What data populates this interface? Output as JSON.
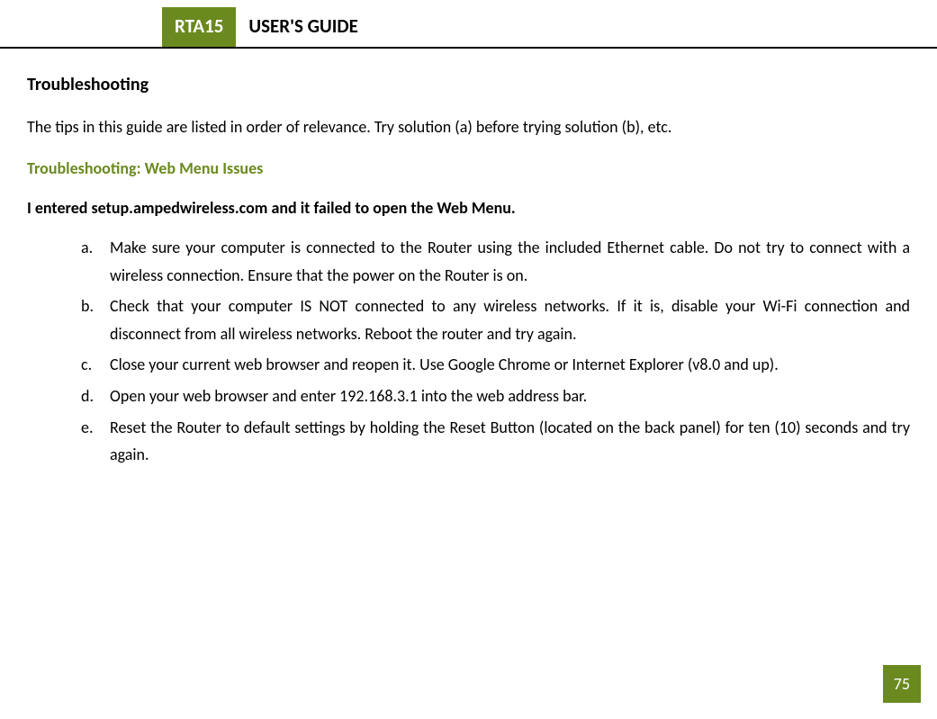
{
  "header": {
    "badge": "RTA15",
    "title": "USER'S GUIDE"
  },
  "colors": {
    "accent": "#6a8a1f",
    "text": "#000000",
    "badge_text": "#ffffff",
    "background": "#ffffff"
  },
  "section": {
    "title": "Troubleshooting",
    "intro": "The tips in this guide are listed in order of relevance.  Try solution (a) before trying solution (b), etc.",
    "subtitle": "Troubleshooting: Web Menu Issues",
    "issue": "I entered setup.ampedwireless.com and it failed to open the Web Menu.",
    "steps": [
      {
        "marker": "a.",
        "text": "Make sure your computer is connected to the Router using the included Ethernet cable.  Do not try to connect with a wireless connection.  Ensure that the power on the Router is on."
      },
      {
        "marker": "b.",
        "text": "Check that your computer IS NOT connected to any wireless networks.  If it is, disable your Wi-Fi connection and disconnect from all wireless networks.  Reboot the router and try again."
      },
      {
        "marker": "c.",
        "text": "Close your current web browser and reopen it.  Use Google Chrome or Internet Explorer (v8.0 and up)."
      },
      {
        "marker": "d.",
        "text": "Open your web browser and enter 192.168.3.1 into the web address bar."
      },
      {
        "marker": "e.",
        "text": "Reset the Router to default settings by holding the Reset Button (located on the back panel) for ten (10) seconds and try again."
      }
    ]
  },
  "page_number": "75"
}
